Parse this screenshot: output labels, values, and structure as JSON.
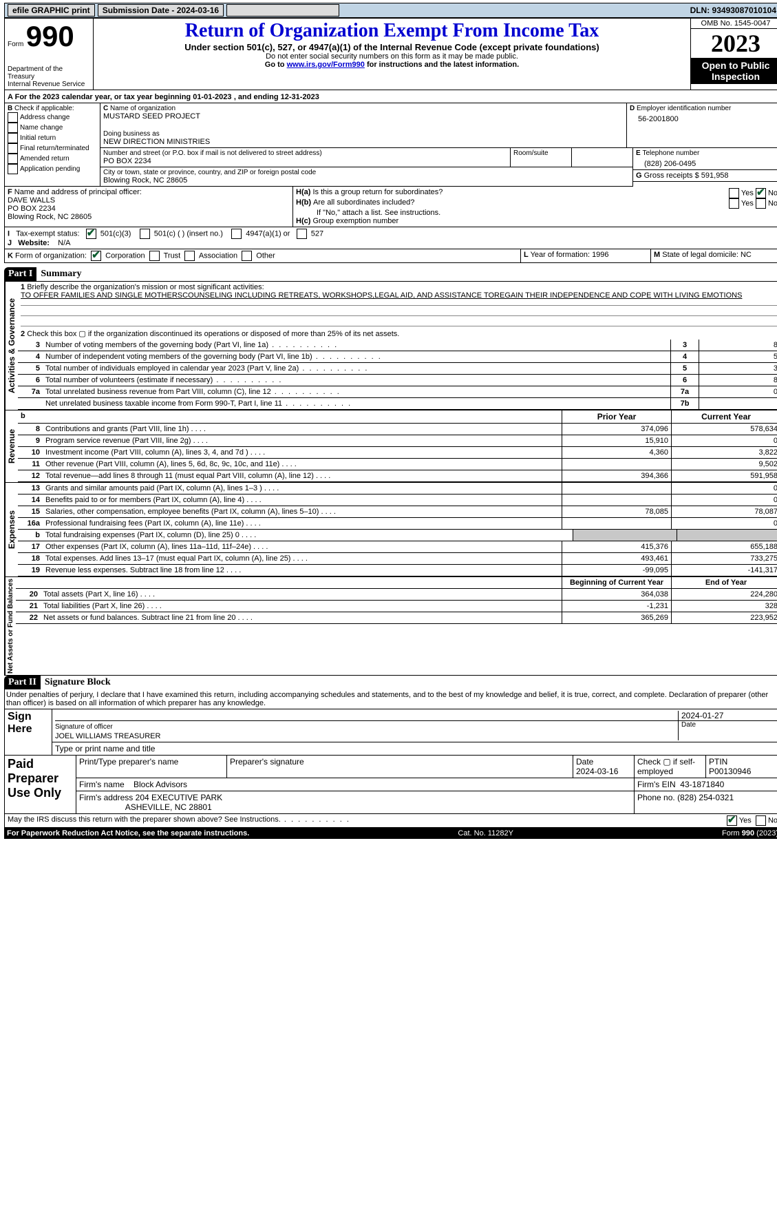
{
  "topbar": {
    "efile_label": "efile GRAPHIC print",
    "submission_label": "Submission Date - 2024-03-16",
    "dln_label": "DLN: 93493087010104"
  },
  "header": {
    "form_label_small": "Form",
    "form_number": "990",
    "title": "Return of Organization Exempt From Income Tax",
    "subtitle": "Under section 501(c), 527, or 4947(a)(1) of the Internal Revenue Code (except private foundations)",
    "ssn_note": "Do not enter social security numbers on this form as it may be made public.",
    "goto_prefix": "Go to ",
    "goto_link": "www.irs.gov/Form990",
    "goto_suffix": " for instructions and the latest information.",
    "dept": "Department of the Treasury",
    "irs": "Internal Revenue Service",
    "omb_label": "OMB No. 1545-0047",
    "year": "2023",
    "open_public": "Open to Public Inspection"
  },
  "A": {
    "text": "For the 2023 calendar year, or tax year beginning 01-01-2023",
    "ending": ", and ending 12-31-2023"
  },
  "B": {
    "label": "Check if applicable:",
    "items": [
      "Address change",
      "Name change",
      "Initial return",
      "Final return/terminated",
      "Amended return",
      "Application pending"
    ]
  },
  "C": {
    "name_label": "Name of organization",
    "name": "MUSTARD SEED PROJECT",
    "dba_label": "Doing business as",
    "dba": "NEW DIRECTION MINISTRIES",
    "street_label": "Number and street (or P.O. box if mail is not delivered to street address)",
    "street": "PO BOX 2234",
    "room_label": "Room/suite",
    "city_label": "City or town, state or province, country, and ZIP or foreign postal code",
    "city": "Blowing Rock, NC  28605"
  },
  "D": {
    "label": "Employer identification number",
    "value": "56-2001800"
  },
  "E": {
    "label": "Telephone number",
    "value": "(828) 206-0495"
  },
  "G": {
    "label": "Gross receipts $",
    "value": "591,958"
  },
  "F": {
    "label": "Name and address of principal officer:",
    "name": "DAVE WALLS",
    "street": "PO BOX 2234",
    "city": "Blowing Rock, NC  28605"
  },
  "H": {
    "a": "Is this a group return for subordinates?",
    "a_yes": "Yes",
    "a_no": "No",
    "b": "Are all subordinates included?",
    "b_yes": "Yes",
    "b_no": "No",
    "b_note": "If \"No,\" attach a list. See instructions.",
    "c": "Group exemption number"
  },
  "I": {
    "label": "Tax-exempt status:",
    "opt1": "501(c)(3)",
    "opt2": "501(c) (   ) (insert no.)",
    "opt3": "4947(a)(1) or",
    "opt4": "527"
  },
  "J": {
    "label": "Website:",
    "value": "N/A"
  },
  "K": {
    "label": "Form of organization:",
    "opts": [
      "Corporation",
      "Trust",
      "Association",
      "Other"
    ]
  },
  "L": {
    "label": "Year of formation:",
    "value": "1996"
  },
  "M": {
    "label": "State of legal domicile:",
    "value": "NC"
  },
  "part_headers": {
    "I": "Part I",
    "I_title": "Summary",
    "II": "Part II",
    "II_title": "Signature Block"
  },
  "sections": {
    "ag": "Activities & Governance",
    "rev": "Revenue",
    "exp": "Expenses",
    "na": "Net Assets or Fund Balances"
  },
  "p1": {
    "l1_label": "Briefly describe the organization's mission or most significant activities:",
    "l1_text": "TO OFFER FAMILIES AND SINGLE MOTHERSCOUNSELING INCLUDING RETREATS, WORKSHOPS,LEGAL AID, AND ASSISTANCE TOREGAIN THEIR INDEPENDENCE AND COPE WITH LIVING EMOTIONS",
    "l2": "Check this box ▢ if the organization discontinued its operations or disposed of more than 25% of its net assets.",
    "rows_g": [
      {
        "n": "3",
        "t": "Number of voting members of the governing body (Part VI, line 1a)",
        "box": "3",
        "v": "8"
      },
      {
        "n": "4",
        "t": "Number of independent voting members of the governing body (Part VI, line 1b)",
        "box": "4",
        "v": "5"
      },
      {
        "n": "5",
        "t": "Total number of individuals employed in calendar year 2023 (Part V, line 2a)",
        "box": "5",
        "v": "3"
      },
      {
        "n": "6",
        "t": "Total number of volunteers (estimate if necessary)",
        "box": "6",
        "v": "8"
      },
      {
        "n": "7a",
        "t": "Total unrelated business revenue from Part VIII, column (C), line 12",
        "box": "7a",
        "v": "0"
      },
      {
        "n": "",
        "t": "Net unrelated business taxable income from Form 990-T, Part I, line 11",
        "box": "7b",
        "v": ""
      }
    ],
    "col_hdr_b": "b",
    "col_prior": "Prior Year",
    "col_current": "Current Year",
    "col_begin": "Beginning of Current Year",
    "col_end": "End of Year",
    "rev": [
      {
        "n": "8",
        "t": "Contributions and grants (Part VIII, line 1h)",
        "p": "374,096",
        "c": "578,634"
      },
      {
        "n": "9",
        "t": "Program service revenue (Part VIII, line 2g)",
        "p": "15,910",
        "c": "0"
      },
      {
        "n": "10",
        "t": "Investment income (Part VIII, column (A), lines 3, 4, and 7d )",
        "p": "4,360",
        "c": "3,822"
      },
      {
        "n": "11",
        "t": "Other revenue (Part VIII, column (A), lines 5, 6d, 8c, 9c, 10c, and 11e)",
        "p": "",
        "c": "9,502"
      },
      {
        "n": "12",
        "t": "Total revenue—add lines 8 through 11 (must equal Part VIII, column (A), line 12)",
        "p": "394,366",
        "c": "591,958"
      }
    ],
    "exp": [
      {
        "n": "13",
        "t": "Grants and similar amounts paid (Part IX, column (A), lines 1–3 )",
        "p": "",
        "c": "0"
      },
      {
        "n": "14",
        "t": "Benefits paid to or for members (Part IX, column (A), line 4)",
        "p": "",
        "c": "0"
      },
      {
        "n": "15",
        "t": "Salaries, other compensation, employee benefits (Part IX, column (A), lines 5–10)",
        "p": "78,085",
        "c": "78,087"
      },
      {
        "n": "16a",
        "t": "Professional fundraising fees (Part IX, column (A), line 11e)",
        "p": "",
        "c": "0"
      },
      {
        "n": "b",
        "t": "Total fundraising expenses (Part IX, column (D), line 25) 0",
        "p": "grey",
        "c": "grey"
      },
      {
        "n": "17",
        "t": "Other expenses (Part IX, column (A), lines 11a–11d, 11f–24e)",
        "p": "415,376",
        "c": "655,188"
      },
      {
        "n": "18",
        "t": "Total expenses. Add lines 13–17 (must equal Part IX, column (A), line 25)",
        "p": "493,461",
        "c": "733,275"
      },
      {
        "n": "19",
        "t": "Revenue less expenses. Subtract line 18 from line 12",
        "p": "-99,095",
        "c": "-141,317"
      }
    ],
    "na": [
      {
        "n": "20",
        "t": "Total assets (Part X, line 16)",
        "p": "364,038",
        "c": "224,280"
      },
      {
        "n": "21",
        "t": "Total liabilities (Part X, line 26)",
        "p": "-1,231",
        "c": "328"
      },
      {
        "n": "22",
        "t": "Net assets or fund balances. Subtract line 21 from line 20",
        "p": "365,269",
        "c": "223,952"
      }
    ]
  },
  "p2": {
    "perjury": "Under penalties of perjury, I declare that I have examined this return, including accompanying schedules and statements, and to the best of my knowledge and belief, it is true, correct, and complete. Declaration of preparer (other than officer) is based on all information of which preparer has any knowledge.",
    "sign_here": "Sign Here",
    "sig_label": "Signature of officer",
    "sig_name": "JOEL WILLIAMS  TREASURER",
    "sig_type": "Type or print name and title",
    "date": "2024-01-27",
    "date_label": "Date",
    "paid": "Paid Preparer Use Only",
    "pp_name_label": "Print/Type preparer's name",
    "pp_sig_label": "Preparer's signature",
    "pp_date_label": "Date",
    "pp_date": "2024-03-16",
    "pp_check_label": "Check ▢ if self-employed",
    "ptin_label": "PTIN",
    "ptin": "P00130946",
    "firm_name_label": "Firm's name",
    "firm_name": "Block Advisors",
    "firm_ein_label": "Firm's EIN",
    "firm_ein": "43-1871840",
    "firm_addr_label": "Firm's address",
    "firm_addr": "204 EXECUTIVE PARK",
    "firm_city": "ASHEVILLE, NC  28801",
    "phone_label": "Phone no.",
    "phone": "(828) 254-0321",
    "discuss": "May the IRS discuss this return with the preparer shown above? See Instructions.",
    "yes": "Yes",
    "no": "No"
  },
  "footer": {
    "pra": "For Paperwork Reduction Act Notice, see the separate instructions.",
    "cat": "Cat. No. 11282Y",
    "form": "Form 990 (2023)"
  }
}
